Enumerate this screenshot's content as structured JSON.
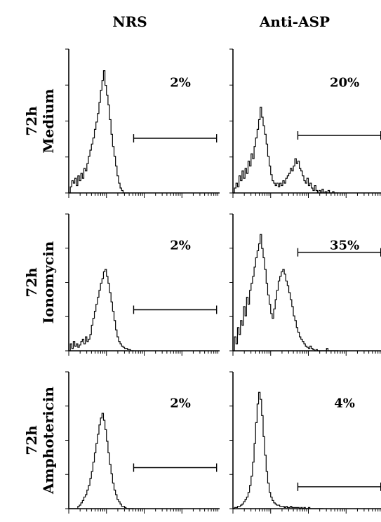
{
  "columns": [
    "NRS",
    "Anti-ASP"
  ],
  "rows": [
    {
      "time": "72h",
      "condition": "Medium"
    },
    {
      "time": "72h",
      "condition": "Ionomycin"
    },
    {
      "time": "72h",
      "condition": "Amphotericin"
    }
  ],
  "chart_data": [
    {
      "type": "area",
      "row": "72h Medium",
      "column": "NRS",
      "gate_percent": "2%",
      "x": [
        0.5,
        1.5,
        2.5,
        3.5,
        4.5,
        5.5,
        6.5,
        7.5,
        8.5,
        9.5,
        10.5,
        11.5,
        12.5,
        13.5,
        14.5,
        15.5,
        16.5,
        17.5,
        18.5,
        19.5,
        20.5,
        21.5,
        22.5,
        23.5,
        24.5,
        25.5,
        26.5,
        27.5,
        28.5,
        29.5,
        30.5,
        31.5,
        32.5,
        33.5,
        34.5,
        35.5,
        36.5,
        37.5,
        38.5,
        39.5
      ],
      "values": [
        0,
        5,
        10,
        8,
        12,
        6,
        14,
        10,
        16,
        12,
        20,
        18,
        24,
        30,
        35,
        40,
        45,
        52,
        58,
        65,
        74,
        84,
        92,
        100,
        88,
        80,
        72,
        60,
        48,
        38,
        30,
        22,
        14,
        8,
        4,
        2,
        0,
        0,
        0,
        0
      ],
      "gate_x": [
        43,
        98
      ],
      "gate_level": 38
    },
    {
      "type": "area",
      "row": "72h Medium",
      "column": "Anti-ASP",
      "gate_percent": "20%",
      "x": [
        0.5,
        1.5,
        2.5,
        3.5,
        4.5,
        5.5,
        6.5,
        7.5,
        8.5,
        9.5,
        10.5,
        11.5,
        12.5,
        13.5,
        14.5,
        15.5,
        16.5,
        17.5,
        18.5,
        19.5,
        20.5,
        21.5,
        22.5,
        23.5,
        24.5,
        25.5,
        26.5,
        27.5,
        28.5,
        29.5,
        30.5,
        31.5,
        32.5,
        33.5,
        34.5,
        35.5,
        36.5,
        37.5,
        38.5,
        39.5,
        40.5,
        41.5,
        42.5,
        43.5,
        44.5,
        45.5,
        46.5,
        47.5,
        48.5,
        49.5,
        50.5,
        51.5,
        52.5,
        53.5,
        54.5,
        55.5,
        56.5,
        57.5,
        58.5,
        59.5,
        60.5,
        61.5,
        62.5,
        63.5,
        64.5,
        65.5,
        66.5,
        67.5,
        68.5,
        69.5
      ],
      "values": [
        0,
        4,
        8,
        5,
        14,
        10,
        18,
        12,
        20,
        16,
        26,
        22,
        32,
        28,
        38,
        45,
        52,
        60,
        70,
        62,
        55,
        48,
        40,
        30,
        22,
        15,
        10,
        8,
        6,
        8,
        5,
        8,
        6,
        10,
        8,
        12,
        14,
        16,
        20,
        18,
        22,
        28,
        24,
        26,
        20,
        18,
        14,
        10,
        8,
        12,
        6,
        8,
        4,
        2,
        6,
        2,
        0,
        2,
        0,
        3,
        0,
        1,
        0,
        2,
        0,
        0,
        1,
        0,
        0,
        0
      ],
      "gate_x": [
        43,
        98
      ],
      "gate_level": 40
    },
    {
      "type": "area",
      "row": "72h Ionomycin",
      "column": "NRS",
      "gate_percent": "2%",
      "x": [
        0.5,
        1.5,
        2.5,
        3.5,
        4.5,
        5.5,
        6.5,
        7.5,
        8.5,
        9.5,
        10.5,
        11.5,
        12.5,
        13.5,
        14.5,
        15.5,
        16.5,
        17.5,
        18.5,
        19.5,
        20.5,
        21.5,
        22.5,
        23.5,
        24.5,
        25.5,
        26.5,
        27.5,
        28.5,
        29.5,
        30.5,
        31.5,
        32.5,
        33.5,
        34.5,
        35.5,
        36.5,
        37.5,
        38.5,
        39.5,
        40.5,
        41.5,
        42.5
      ],
      "values": [
        0,
        6,
        2,
        8,
        4,
        6,
        3,
        5,
        8,
        10,
        6,
        12,
        8,
        10,
        14,
        22,
        28,
        34,
        40,
        46,
        52,
        58,
        62,
        68,
        70,
        64,
        58,
        50,
        42,
        34,
        26,
        18,
        12,
        8,
        6,
        4,
        3,
        2,
        2,
        1,
        1,
        0,
        0
      ],
      "gate_x": [
        43,
        98
      ],
      "gate_level": 30
    },
    {
      "type": "area",
      "row": "72h Ionomycin",
      "column": "Anti-ASP",
      "gate_percent": "35%",
      "x": [
        0.5,
        1.5,
        2.5,
        3.5,
        4.5,
        5.5,
        6.5,
        7.5,
        8.5,
        9.5,
        10.5,
        11.5,
        12.5,
        13.5,
        14.5,
        15.5,
        16.5,
        17.5,
        18.5,
        19.5,
        20.5,
        21.5,
        22.5,
        23.5,
        24.5,
        25.5,
        26.5,
        27.5,
        28.5,
        29.5,
        30.5,
        31.5,
        32.5,
        33.5,
        34.5,
        35.5,
        36.5,
        37.5,
        38.5,
        39.5,
        40.5,
        41.5,
        42.5,
        43.5,
        44.5,
        45.5,
        46.5,
        47.5,
        48.5,
        49.5,
        50.5,
        51.5,
        52.5,
        53.5,
        54.5,
        55.5,
        56.5,
        57.5,
        58.5,
        59.5,
        60.5,
        61.5,
        62.5,
        63.5,
        64.5,
        65.5,
        66.5,
        67.5,
        68.5,
        69.5
      ],
      "values": [
        0,
        12,
        6,
        20,
        14,
        26,
        22,
        38,
        30,
        46,
        40,
        52,
        58,
        64,
        72,
        80,
        86,
        92,
        100,
        88,
        80,
        70,
        58,
        48,
        40,
        32,
        28,
        36,
        44,
        52,
        60,
        64,
        68,
        70,
        66,
        60,
        56,
        50,
        44,
        38,
        30,
        26,
        20,
        16,
        12,
        10,
        8,
        6,
        4,
        3,
        2,
        4,
        2,
        1,
        0,
        1,
        0,
        0,
        0,
        0,
        0,
        0,
        2,
        0,
        0,
        0,
        0,
        0,
        0,
        0
      ],
      "gate_x": [
        43,
        98
      ],
      "gate_level": 72
    },
    {
      "type": "area",
      "row": "72h Amphotericin",
      "column": "NRS",
      "gate_percent": "2%",
      "x": [
        0.5,
        1.5,
        2.5,
        3.5,
        4.5,
        5.5,
        6.5,
        7.5,
        8.5,
        9.5,
        10.5,
        11.5,
        12.5,
        13.5,
        14.5,
        15.5,
        16.5,
        17.5,
        18.5,
        19.5,
        20.5,
        21.5,
        22.5,
        23.5,
        24.5,
        25.5,
        26.5,
        27.5,
        28.5,
        29.5,
        30.5,
        31.5,
        32.5,
        33.5,
        34.5,
        35.5,
        36.5,
        37.5,
        38.5,
        39.5,
        40.5,
        41.5,
        42.5
      ],
      "values": [
        0,
        0,
        0,
        0,
        0,
        0,
        2,
        3,
        5,
        7,
        10,
        12,
        16,
        20,
        26,
        32,
        40,
        48,
        56,
        64,
        72,
        78,
        82,
        76,
        68,
        58,
        48,
        38,
        30,
        22,
        16,
        12,
        8,
        6,
        4,
        2,
        2,
        1,
        0,
        0,
        0,
        0,
        0
      ],
      "gate_x": [
        43,
        98
      ],
      "gate_level": 30
    },
    {
      "type": "area",
      "row": "72h Amphotericin",
      "column": "Anti-ASP",
      "gate_percent": "4%",
      "x": [
        0.5,
        1.5,
        2.5,
        3.5,
        4.5,
        5.5,
        6.5,
        7.5,
        8.5,
        9.5,
        10.5,
        11.5,
        12.5,
        13.5,
        14.5,
        15.5,
        16.5,
        17.5,
        18.5,
        19.5,
        20.5,
        21.5,
        22.5,
        23.5,
        24.5,
        25.5,
        26.5,
        27.5,
        28.5,
        29.5,
        30.5,
        31.5,
        32.5,
        33.5,
        34.5,
        35.5,
        36.5,
        37.5,
        38.5,
        39.5,
        40.5,
        41.5,
        42.5,
        43.5,
        44.5,
        45.5,
        46.5,
        47.5,
        48.5,
        49.5,
        50.5,
        51.5,
        52.5,
        53.5,
        54.5,
        55.5,
        56.5,
        57.5,
        58.5,
        59.5
      ],
      "values": [
        0,
        1,
        1,
        2,
        2,
        3,
        4,
        6,
        8,
        10,
        14,
        20,
        28,
        40,
        56,
        74,
        90,
        100,
        94,
        80,
        62,
        46,
        32,
        22,
        14,
        10,
        7,
        5,
        4,
        3,
        3,
        2,
        2,
        2,
        1,
        2,
        1,
        1,
        2,
        1,
        1,
        1,
        1,
        1,
        0,
        1,
        0,
        1,
        0,
        0,
        1,
        0,
        0,
        0,
        0,
        0,
        0,
        0,
        0,
        0
      ],
      "gate_x": [
        43,
        98
      ],
      "gate_level": 16
    }
  ]
}
